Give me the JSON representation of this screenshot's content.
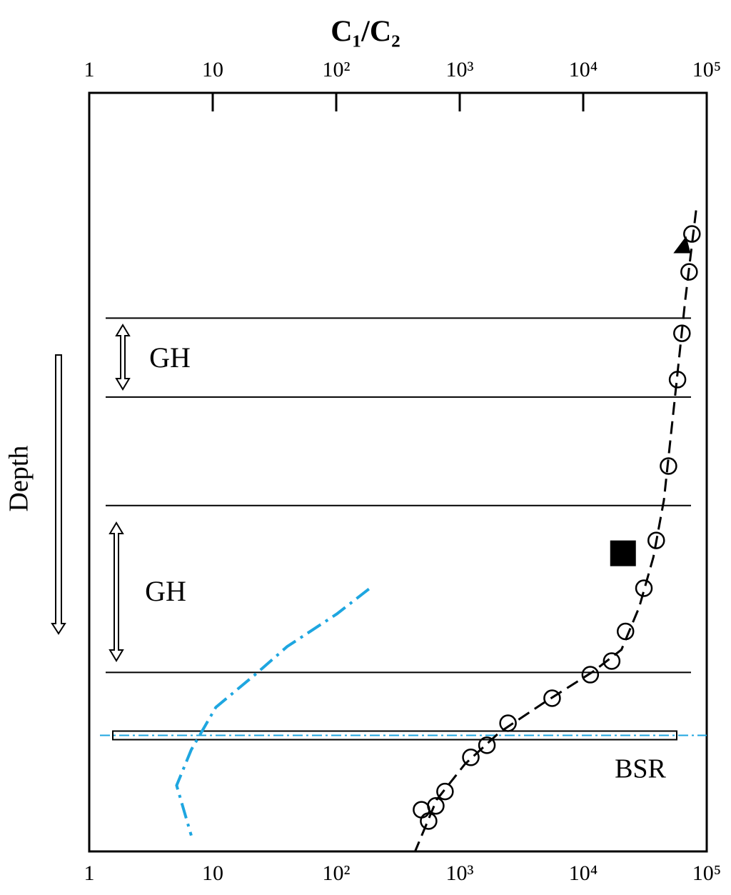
{
  "chart_data": {
    "type": "scatter",
    "title": "C₁/C₂",
    "y_label": "Depth",
    "log_x": true,
    "xlim": [
      1,
      100000
    ],
    "ylim": [
      0,
      100
    ],
    "xticks": [
      1,
      10,
      {
        "value": 100,
        "label": "10²"
      },
      {
        "value": 1000,
        "label": "10³"
      },
      {
        "value": 10000,
        "label": "10⁴"
      },
      {
        "value": 100000,
        "label": "10⁵"
      }
    ],
    "series": [
      {
        "name": "samples",
        "marker": "circle",
        "color": "#000000",
        "x": [
          75900,
          72000,
          63000,
          58000,
          49000,
          39000,
          31000,
          22000,
          17000,
          11400,
          5600,
          2460,
          1660,
          1230,
          760,
          640,
          490,
          560
        ],
        "values": [
          18.6,
          23.6,
          31.7,
          37.8,
          49.2,
          59.0,
          65.3,
          71.0,
          74.9,
          76.7,
          79.8,
          83.1,
          86.0,
          87.6,
          92.1,
          94.0,
          94.5,
          96.0
        ]
      },
      {
        "name": "triangle",
        "marker": "triangle",
        "color": "#000000",
        "x": [
          63000
        ],
        "values": [
          20.2
        ]
      },
      {
        "name": "square",
        "marker": "square",
        "color": "#000000",
        "x": [
          21000
        ],
        "values": [
          60.7
        ]
      },
      {
        "name": "trend",
        "marker": "dashed-line",
        "color": "#000000",
        "x": [
          82000,
          67000,
          55000,
          45000,
          37000,
          28400,
          20400,
          12000,
          4700,
          2100,
          1100,
          650,
          435
        ],
        "values": [
          15.5,
          27.3,
          40.5,
          53.7,
          61.2,
          67.8,
          73.4,
          76.3,
          80.5,
          84.3,
          88.5,
          93.2,
          100
        ]
      },
      {
        "name": "cyan-curve",
        "marker": "dashdot-line",
        "color": "#1ea6e0",
        "x": [
          184,
          101,
          40,
          22,
          10.6,
          6.7,
          5.1,
          6.7
        ],
        "values": [
          65.4,
          68.7,
          73.0,
          76.7,
          81.0,
          86.6,
          91.3,
          97.9
        ]
      }
    ],
    "boundaries": [
      29.7,
      40.1,
      54.4,
      76.4
    ],
    "bsr_depth": 84.7,
    "annotations": [
      "GH",
      "GH",
      "BSR"
    ]
  }
}
